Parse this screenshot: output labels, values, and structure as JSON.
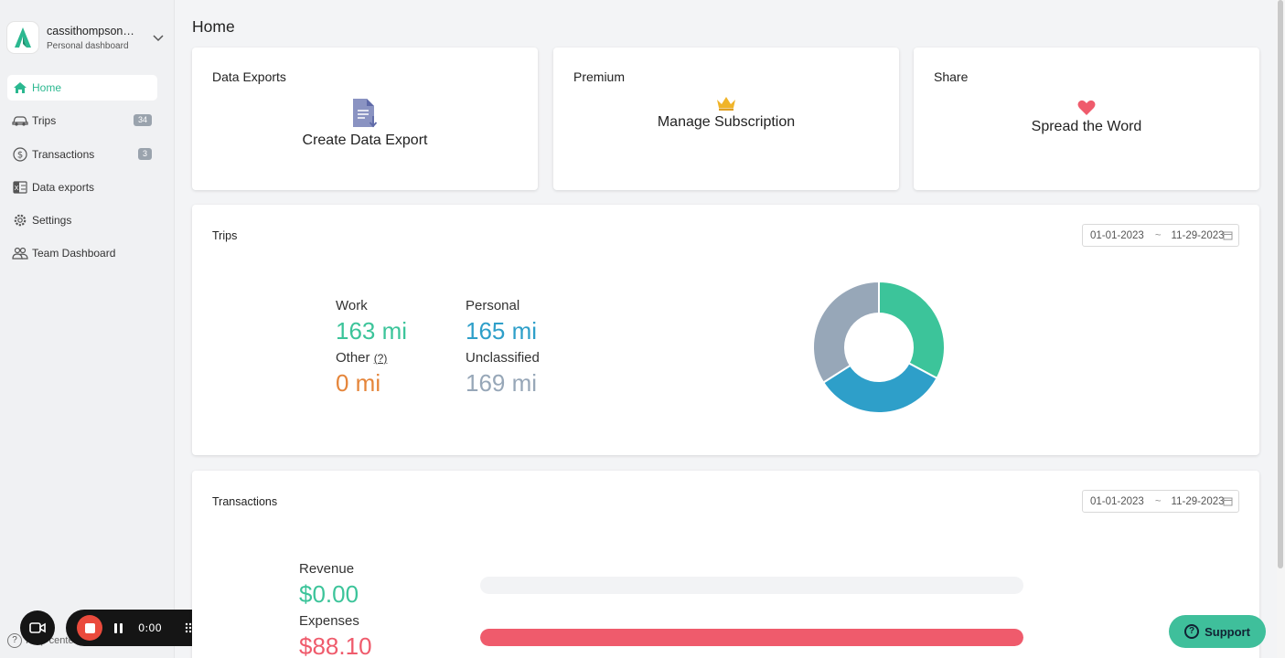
{
  "account": {
    "name": "cassithompson0...",
    "subtitle": "Personal dashboard"
  },
  "sidebar": {
    "items": [
      {
        "label": "Home",
        "icon": "home-icon",
        "active": true
      },
      {
        "label": "Trips",
        "icon": "car-icon",
        "badge": "34"
      },
      {
        "label": "Transactions",
        "icon": "dollar-icon",
        "badge": "3"
      },
      {
        "label": "Data exports",
        "icon": "spreadsheet-icon"
      },
      {
        "label": "Settings",
        "icon": "gear-icon"
      },
      {
        "label": "Team Dashboard",
        "icon": "team-icon"
      }
    ],
    "help_label": "Help center"
  },
  "page": {
    "title": "Home"
  },
  "tiles": {
    "data_exports": {
      "title": "Data Exports",
      "action": "Create Data Export",
      "icon": "document-download-icon"
    },
    "premium": {
      "title": "Premium",
      "action": "Manage Subscription",
      "icon": "crown-icon"
    },
    "share": {
      "title": "Share",
      "action": "Spread the Word",
      "icon": "heart-icon"
    }
  },
  "trips": {
    "title": "Trips",
    "date_from": "01-01-2023",
    "date_to": "11-29-2023",
    "work_label": "Work",
    "work_value": "163 mi",
    "personal_label": "Personal",
    "personal_value": "165 mi",
    "other_label": "Other",
    "other_help": "(?)",
    "other_value": "0 mi",
    "unclassified_label": "Unclassified",
    "unclassified_value": "169 mi"
  },
  "chart_data": {
    "type": "pie",
    "categories": [
      "Work",
      "Personal",
      "Other",
      "Unclassified"
    ],
    "values": [
      163,
      165,
      0,
      169
    ],
    "colors": [
      "#3cc49a",
      "#2e9fc9",
      "#e5853a",
      "#97a7b8"
    ]
  },
  "transactions": {
    "title": "Transactions",
    "date_from": "01-01-2023",
    "date_to": "11-29-2023",
    "revenue_label": "Revenue",
    "revenue_value": "$0.00",
    "revenue_fraction": 0,
    "expenses_label": "Expenses",
    "expenses_value": "$88.10",
    "expenses_fraction": 1
  },
  "recorder": {
    "time": "0:00"
  },
  "support": {
    "label": "Support"
  },
  "colors": {
    "accent": "#2bb890",
    "work": "#3cc49a",
    "personal": "#2e9fc9",
    "other": "#e5853a",
    "unclassified": "#97a7b8",
    "expense": "#ef5b6c"
  }
}
